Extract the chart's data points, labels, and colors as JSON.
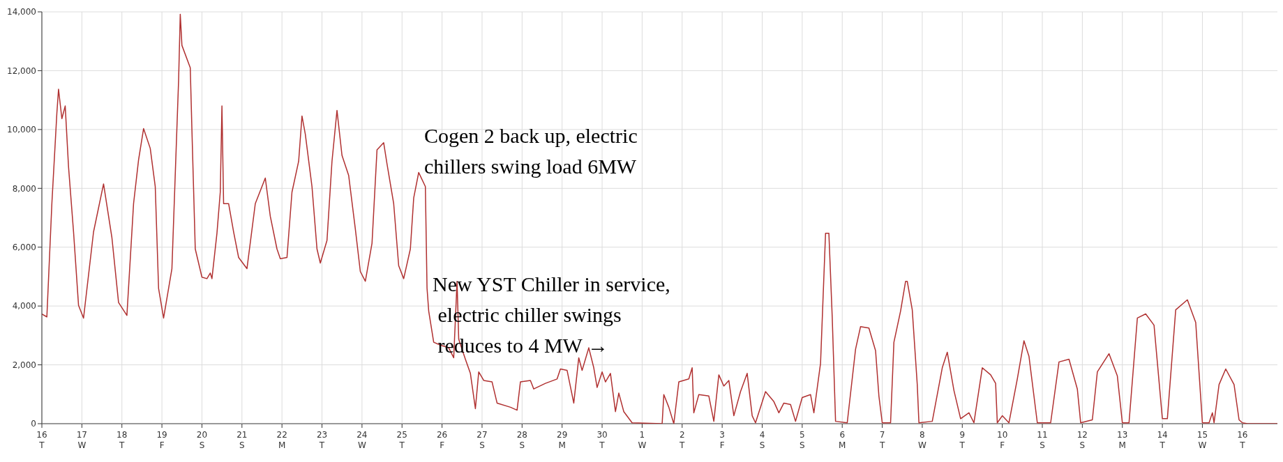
{
  "chart_data": {
    "type": "line",
    "x": [
      "--06-16T00:00",
      "--06-16T03:00",
      "--06-16T06:00",
      "--06-16T09:00",
      "--06-16T10:00",
      "--06-16T12:00",
      "--06-16T14:00",
      "--06-16T16:00",
      "--06-16T19:00",
      "--06-16T22:00",
      "--06-17T01:00",
      "--06-17T07:00",
      "--06-17T13:00",
      "--06-17T18:00",
      "--06-17T22:00",
      "--06-18T03:00",
      "--06-18T07:00",
      "--06-18T10:00",
      "--06-18T13:00",
      "--06-18T17:00",
      "--06-18T20:00",
      "--06-18T22:00",
      "--06-19T01:00",
      "--06-19T06:00",
      "--06-19T10:00",
      "--06-19T11:00",
      "--06-19T12:00",
      "--06-19T17:00",
      "--06-19T18:00",
      "--06-19T20:00",
      "--06-20T00:00",
      "--06-20T03:00",
      "--06-20T05:00",
      "--06-20T06:00",
      "--06-20T09:00",
      "--06-20T11:00",
      "--06-20T12:00",
      "--06-20T13:00",
      "--06-20T16:00",
      "--06-20T19:00",
      "--06-20T22:00",
      "--06-21T03:00",
      "--06-21T08:00",
      "--06-21T14:00",
      "--06-21T17:00",
      "--06-21T21:00",
      "--06-21T23:00",
      "--06-22T03:00",
      "--06-22T06:00",
      "--06-22T10:00",
      "--06-22T12:00",
      "--06-22T14:00",
      "--06-22T18:00",
      "--06-22T21:00",
      "--06-22T23:00",
      "--06-23T03:00",
      "--06-23T06:00",
      "--06-23T09:00",
      "--06-23T12:00",
      "--06-23T16:00",
      "--06-23T20:00",
      "--06-23T23:00",
      "--06-24T02:00",
      "--06-24T06:00",
      "--06-24T09:00",
      "--06-24T13:00",
      "--06-24T15:00",
      "--06-24T19:00",
      "--06-24T22:00",
      "--06-25T01:00",
      "--06-25T05:00",
      "--06-25T07:00",
      "--06-25T10:00",
      "--06-25T14:00",
      "--06-25T15:00",
      "--06-25T16:00",
      "--06-25T19:00",
      "--06-25T23:00",
      "--06-26T04:00",
      "--06-26T07:00",
      "--06-26T09:00",
      "--06-26T10:00",
      "--06-26T14:00",
      "--06-26T17:00",
      "--06-26T20:00",
      "--06-26T22:00",
      "--06-27T01:00",
      "--06-27T06:00",
      "--06-27T09:00",
      "--06-27T17:00",
      "--06-27T21:00",
      "--06-27T23:00",
      "--06-28T05:00",
      "--06-28T07:00",
      "--06-28T14:00",
      "--06-28T21:00",
      "--06-28T23:00",
      "--06-29T03:00",
      "--06-29T07:00",
      "--06-29T10:00",
      "--06-29T12:00",
      "--06-29T16:00",
      "--06-29T19:00",
      "--06-29T21:00",
      "--06-30T00:00",
      "--06-30T02:00",
      "--06-30T05:00",
      "--06-30T08:00",
      "--06-30T10:00",
      "--06-30T13:00",
      "--06-30T18:00",
      "--07-01T12:00",
      "--07-01T13:00",
      "--07-01T16:00",
      "--07-01T19:00",
      "--07-01T22:00",
      "--07-02T04:00",
      "--07-02T06:00",
      "--07-02T07:00",
      "--07-02T10:00",
      "--07-02T16:00",
      "--07-02T19:00",
      "--07-02T22:00",
      "--07-03T01:00",
      "--07-03T04:00",
      "--07-03T07:00",
      "--07-03T11:00",
      "--07-03T15:00",
      "--07-03T18:00",
      "--07-03T20:00",
      "--07-04T02:00",
      "--07-04T07:00",
      "--07-04T10:00",
      "--07-04T13:00",
      "--07-04T17:00",
      "--07-04T20:00",
      "--07-05T00:00",
      "--07-05T05:00",
      "--07-05T07:00",
      "--07-05T11:00",
      "--07-05T14:00",
      "--07-05T16:00",
      "--07-05T18:00",
      "--07-05T20:00",
      "--07-06T03:00",
      "--07-06T08:00",
      "--07-06T11:00",
      "--07-06T16:00",
      "--07-06T20:00",
      "--07-06T22:00",
      "--07-07T00:00",
      "--07-07T05:00",
      "--07-07T07:00",
      "--07-07T11:00",
      "--07-07T14:00",
      "--07-07T15:00",
      "--07-07T18:00",
      "--07-07T21:00",
      "--07-07T22:00",
      "--07-08T06:00",
      "--07-08T12:00",
      "--07-08T15:00",
      "--07-08T19:00",
      "--07-08T23:00",
      "--07-09T04:00",
      "--07-09T07:00",
      "--07-09T12:00",
      "--07-09T17:00",
      "--07-09T20:00",
      "--07-09T21:00",
      "--07-10T00:00",
      "--07-10T04:00",
      "--07-10T09:00",
      "--07-10T13:00",
      "--07-10T16:00",
      "--07-10T21:00",
      "--07-11T05:00",
      "--07-11T10:00",
      "--07-11T16:00",
      "--07-11T21:00",
      "--07-11T23:00",
      "--07-12T06:00",
      "--07-12T09:00",
      "--07-12T16:00",
      "--07-12T21:00",
      "--07-13T00:00",
      "--07-13T04:00",
      "--07-13T09:00",
      "--07-13T14:00",
      "--07-13T19:00",
      "--07-14T00:00",
      "--07-14T03:00",
      "--07-14T08:00",
      "--07-14T15:00",
      "--07-14T20:00",
      "--07-15T00:00",
      "--07-15T04:00",
      "--07-15T06:00",
      "--07-15T07:00",
      "--07-15T10:00",
      "--07-15T14:00",
      "--07-15T19:00",
      "--07-15T22:00",
      "--07-16T00:00",
      "--07-16T03:00",
      "--07-16T21:00"
    ],
    "series": [
      {
        "color": "#b03030",
        "values": [
          3730,
          3630,
          7480,
          10560,
          11370,
          10370,
          10800,
          8730,
          6520,
          4020,
          3590,
          6520,
          8150,
          6330,
          4120,
          3680,
          7480,
          8970,
          10030,
          9360,
          8060,
          4600,
          3590,
          5270,
          11660,
          13920,
          12860,
          12100,
          9980,
          5940,
          4980,
          4930,
          5120,
          4930,
          6470,
          7870,
          10800,
          7480,
          7480,
          6520,
          5650,
          5270,
          7480,
          8350,
          7050,
          5940,
          5610,
          5650,
          7870,
          8920,
          10460,
          9840,
          8060,
          5940,
          5460,
          6230,
          8920,
          10650,
          9120,
          8440,
          6620,
          5170,
          4840,
          6130,
          9310,
          9550,
          8830,
          7480,
          5370,
          4930,
          5940,
          7670,
          8540,
          8060,
          4600,
          3830,
          2770,
          2670,
          2580,
          2240,
          4840,
          2870,
          2190,
          1710,
          510,
          1760,
          1470,
          1420,
          700,
          560,
          460,
          1420,
          1470,
          1180,
          1370,
          1520,
          1860,
          1810,
          700,
          2240,
          1810,
          2580,
          1900,
          1230,
          1760,
          1420,
          1710,
          410,
          1040,
          410,
          30,
          0,
          990,
          560,
          0,
          1420,
          1520,
          1900,
          370,
          990,
          940,
          80,
          1660,
          1280,
          1470,
          270,
          1090,
          1710,
          270,
          30,
          1090,
          750,
          370,
          700,
          650,
          80,
          890,
          990,
          370,
          2050,
          6470,
          6470,
          3630,
          80,
          30,
          2530,
          3300,
          3250,
          2480,
          940,
          30,
          30,
          2770,
          3830,
          4840,
          4840,
          3870,
          1330,
          30,
          80,
          1900,
          2430,
          1130,
          170,
          370,
          30,
          1900,
          1660,
          1370,
          30,
          270,
          30,
          1520,
          2820,
          2290,
          30,
          30,
          2100,
          2190,
          1180,
          30,
          130,
          1760,
          2380,
          1620,
          30,
          30,
          3590,
          3730,
          3350,
          170,
          170,
          3870,
          4210,
          3440,
          30,
          30,
          370,
          30,
          1330,
          1860,
          1330,
          130,
          30,
          0,
          0
        ]
      }
    ],
    "xlim": [
      "--06-16T00:00",
      "--07-16T21:00"
    ],
    "xticks": [
      {
        "value": "--06-16",
        "label": "16\nT"
      },
      {
        "value": "--06-17",
        "label": "17\nW"
      },
      {
        "value": "--06-18",
        "label": "18\nT"
      },
      {
        "value": "--06-19",
        "label": "19\nF"
      },
      {
        "value": "--06-20",
        "label": "20\nS"
      },
      {
        "value": "--06-21",
        "label": "21\nS"
      },
      {
        "value": "--06-22",
        "label": "22\nM"
      },
      {
        "value": "--06-23",
        "label": "23\nT"
      },
      {
        "value": "--06-24",
        "label": "24\nW"
      },
      {
        "value": "--06-25",
        "label": "25\nT"
      },
      {
        "value": "--06-26",
        "label": "26\nF"
      },
      {
        "value": "--06-27",
        "label": "27\nS"
      },
      {
        "value": "--06-28",
        "label": "28\nS"
      },
      {
        "value": "--06-29",
        "label": "29\nM"
      },
      {
        "value": "--06-30",
        "label": "30\nT"
      },
      {
        "value": "--07-01",
        "label": "1\nW"
      },
      {
        "value": "--07-02",
        "label": "2\nT"
      },
      {
        "value": "--07-03",
        "label": "3\nF"
      },
      {
        "value": "--07-04",
        "label": "4\nS"
      },
      {
        "value": "--07-05",
        "label": "5\nS"
      },
      {
        "value": "--07-06",
        "label": "6\nM"
      },
      {
        "value": "--07-07",
        "label": "7\nT"
      },
      {
        "value": "--07-08",
        "label": "8\nW"
      },
      {
        "value": "--07-09",
        "label": "9\nT"
      },
      {
        "value": "--07-10",
        "label": "10\nF"
      },
      {
        "value": "--07-11",
        "label": "11\nS"
      },
      {
        "value": "--07-12",
        "label": "12\nS"
      },
      {
        "value": "--07-13",
        "label": "13\nM"
      },
      {
        "value": "--07-14",
        "label": "14\nT"
      },
      {
        "value": "--07-15",
        "label": "15\nW"
      },
      {
        "value": "--07-16",
        "label": "16\nT"
      }
    ],
    "ylim": [
      0,
      14000
    ],
    "yticks": [
      {
        "value": 0,
        "label": "0"
      },
      {
        "value": 2000,
        "label": "2,000"
      },
      {
        "value": 4000,
        "label": "4,000"
      },
      {
        "value": 6000,
        "label": "6,000"
      },
      {
        "value": 8000,
        "label": "8,000"
      },
      {
        "value": 10000,
        "label": "10,000"
      },
      {
        "value": 12000,
        "label": "12,000"
      },
      {
        "value": 14000,
        "label": "14,000"
      }
    ],
    "grid": true,
    "marker": "none",
    "line_style": "solid",
    "annotations": [
      "Cogen 2 back up, electric\nchillers swing load 6MW",
      "New YST Chiller in service,\n electric chiller swings\n reduces to 4 MW →"
    ]
  }
}
